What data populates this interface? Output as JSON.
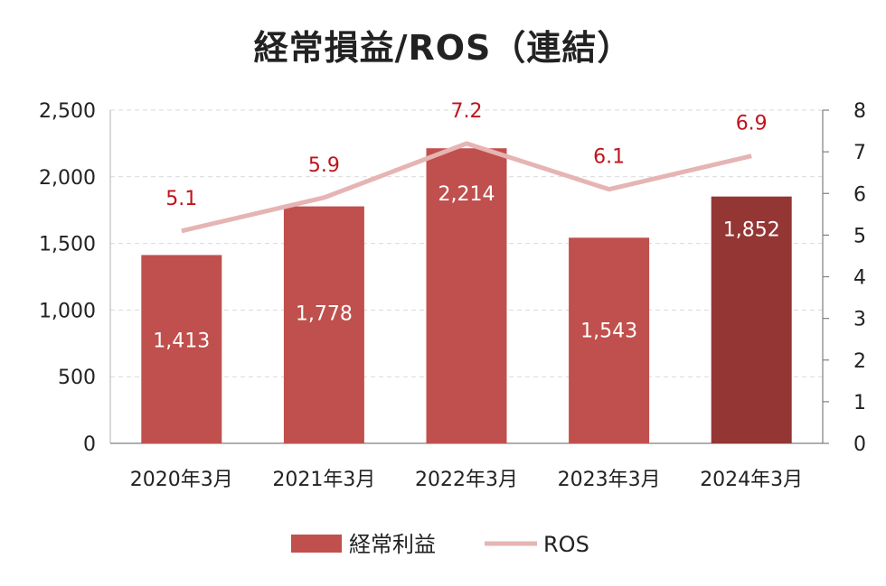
{
  "chart_data": {
    "type": "bar",
    "title": "経常損益/ROS（連結）",
    "categories": [
      "2020年3月",
      "2021年3月",
      "2022年3月",
      "2023年3月",
      "2024年3月"
    ],
    "series": [
      {
        "name": "経常利益",
        "type": "bar",
        "axis": "left",
        "values": [
          1413,
          1778,
          2214,
          1543,
          1852
        ],
        "labels": [
          "1,413",
          "1,778",
          "2,214",
          "1,543",
          "1,852"
        ]
      },
      {
        "name": "ROS",
        "type": "line",
        "axis": "right",
        "values": [
          5.1,
          5.9,
          7.2,
          6.1,
          6.9
        ],
        "labels": [
          "5.1",
          "5.9",
          "7.2",
          "6.1",
          "6.9"
        ]
      }
    ],
    "y_left": {
      "ylim": [
        0,
        2500
      ],
      "ticks": [
        "0",
        "500",
        "1,000",
        "1,500",
        "2,000",
        "2,500"
      ]
    },
    "y_right": {
      "ylim": [
        0,
        8
      ],
      "ticks": [
        "0",
        "1",
        "2",
        "3",
        "4",
        "5",
        "6",
        "7",
        "8"
      ]
    },
    "grid": true,
    "legend_position": "bottom",
    "colors": {
      "bar": "#c0504d",
      "bar_highlight": "#943634",
      "line": "#e6b4b4",
      "ros_label": "#c0141c",
      "grid": "#d9d9d9"
    }
  }
}
